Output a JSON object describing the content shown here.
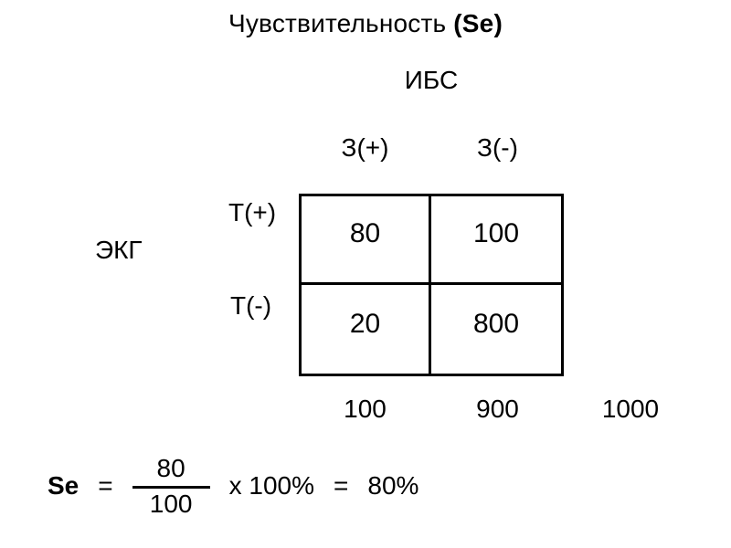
{
  "slide": {
    "title": {
      "normal": "Чувствительность ",
      "bold": "(Se)"
    },
    "disease_label": "ИБС",
    "test_label": "ЭКГ",
    "col_headers": [
      "З(+)",
      "З(-)"
    ],
    "row_headers": [
      "Т(+)",
      "Т(-)"
    ],
    "cells": [
      [
        "80",
        "100"
      ],
      [
        "20",
        "800"
      ]
    ],
    "totals": {
      "diseased": "100",
      "healthy": "900",
      "grand": "1000"
    },
    "formula": {
      "lhs": "Se",
      "eq1": "=",
      "numerator": "80",
      "denominator": "100",
      "multiplier": "x 100%",
      "eq2": "=",
      "result": "80%"
    },
    "colors": {
      "background": "#ffffff",
      "text": "#000000",
      "table_border": "#000000"
    }
  }
}
